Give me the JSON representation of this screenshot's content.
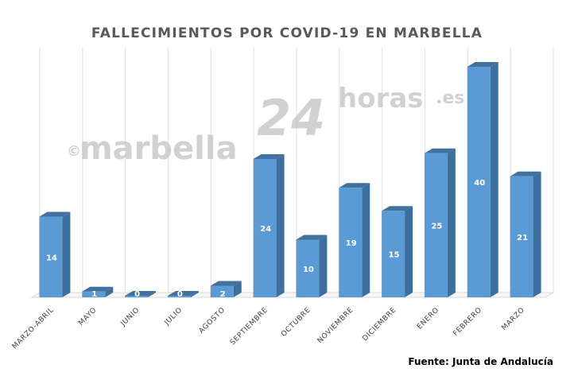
{
  "chart_data": {
    "type": "bar",
    "title": "FALLECIMIENTOS POR COVID-19 EN MARBELLA",
    "categories": [
      "MARZO-ABRIL",
      "MAYO",
      "JUNIO",
      "JULIO",
      "AGOSTO",
      "SEPTIEMBRE",
      "OCTUBRE",
      "NOVIEMBRE",
      "DICIEMBRE",
      "ENERO",
      "FEBRERO",
      "MARZO"
    ],
    "values": [
      14,
      1,
      0,
      0,
      2,
      24,
      10,
      19,
      15,
      25,
      40,
      21
    ],
    "ylim": [
      0,
      40
    ],
    "grid": true,
    "legend": "none",
    "bar_color": "#5B9BD5",
    "bar_side_color": "#3E6E9B",
    "bar_top_color": "#41719C",
    "data_labels": true
  },
  "source": "Fuente: Junta de Andalucía",
  "watermark": {
    "copyright": "©",
    "part1": "marbella",
    "part2": "24",
    "part3": "horas",
    "part4": ".es"
  }
}
